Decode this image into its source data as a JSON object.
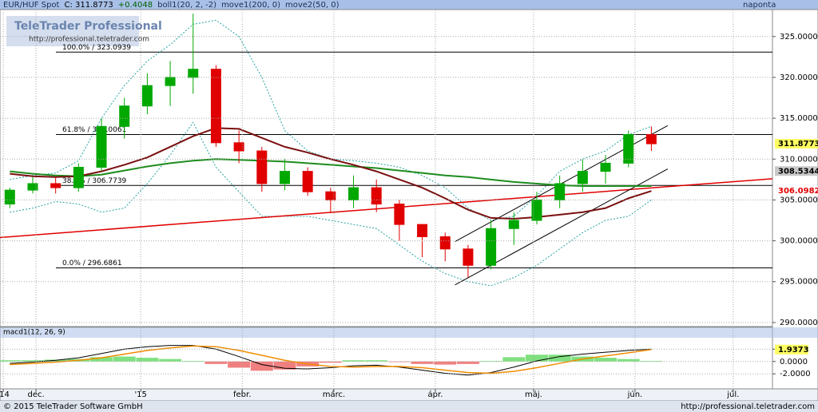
{
  "chart_data": {
    "type": "candlestick",
    "title": "EUR/HUF Spot",
    "last_label": "C: 311.8773",
    "change": "+0.4048",
    "period": "naponta",
    "x": [
      3,
      10,
      17,
      24,
      31,
      38,
      45,
      52,
      59,
      66,
      73,
      80,
      87,
      94,
      101,
      108,
      115,
      122,
      129,
      136,
      143,
      150,
      157,
      164,
      171,
      178,
      185,
      192,
      199
    ],
    "open": [
      304.5,
      306.2,
      307,
      306.5,
      309,
      314,
      316.5,
      319,
      320,
      321,
      312,
      311,
      307,
      308.5,
      306,
      305,
      306.5,
      304.5,
      302,
      300.5,
      299,
      297,
      301.5,
      302.5,
      305,
      307,
      308.5,
      309.5,
      313
    ],
    "high": [
      306.5,
      307.8,
      307.8,
      309.5,
      315,
      317.5,
      320.5,
      322,
      327.8,
      321.5,
      313.5,
      311.5,
      310,
      309,
      306.5,
      308,
      307.5,
      305,
      302,
      301,
      299.5,
      302.5,
      303.5,
      306,
      308,
      310,
      310.5,
      313.5,
      314
    ],
    "low": [
      304,
      305.8,
      305.8,
      306,
      308.5,
      312.5,
      315.5,
      316.5,
      318,
      311.5,
      309.5,
      306,
      306.2,
      305.5,
      303.5,
      304,
      303.5,
      300,
      298,
      297.5,
      295.5,
      296.5,
      299.5,
      302,
      304,
      306,
      307,
      309,
      311
    ],
    "close": [
      306.2,
      307,
      306.5,
      309,
      314,
      316.5,
      319,
      320,
      321,
      312,
      311,
      307,
      308.5,
      306,
      305,
      306.5,
      304.5,
      302,
      300.5,
      299,
      297,
      301.5,
      302.5,
      305,
      307,
      308.5,
      309.5,
      313,
      311.8773
    ],
    "up_color": "#00a800",
    "down_color": "#e00000",
    "bands": {
      "name": "boll1(20, 2, -2)",
      "color": "#2aa3a3",
      "upper": [
        307.5,
        308,
        308.3,
        309.8,
        315,
        319,
        322,
        324,
        326.5,
        327,
        325,
        320,
        313.5,
        311,
        310,
        309.8,
        309.5,
        309,
        308,
        306.5,
        304,
        302.5,
        303,
        305.5,
        308.5,
        310,
        311,
        313,
        314
      ],
      "lower": [
        303.5,
        304,
        304.8,
        304.5,
        303.5,
        304,
        307,
        310.5,
        314.5,
        309,
        306,
        303,
        303,
        303,
        302.5,
        302,
        301.5,
        299.5,
        297.5,
        296,
        295,
        294.5,
        295.5,
        297,
        299,
        301,
        302.5,
        303,
        305
      ]
    },
    "series": [
      {
        "name": "move1(200, 0)",
        "color": "#1e8c1e",
        "values": [
          308.5,
          308.2,
          308,
          307.9,
          308.1,
          308.6,
          309.1,
          309.5,
          309.8,
          310,
          309.9,
          309.8,
          309.7,
          309.5,
          309.3,
          309.1,
          308.9,
          308.6,
          308.3,
          308,
          307.8,
          307.5,
          307.2,
          307,
          306.8,
          306.7,
          306.7,
          306.7,
          306.7
        ]
      },
      {
        "name": "move2(50, 0)",
        "color": "#7a1010",
        "values": [
          308.2,
          307.9,
          307.8,
          307.9,
          308.5,
          309.3,
          310.2,
          311.5,
          312.8,
          313.8,
          313.7,
          312.6,
          311.5,
          310.8,
          310,
          309.3,
          308.5,
          307.5,
          306.5,
          305.2,
          303.8,
          302.8,
          302.7,
          302.9,
          303.2,
          303.5,
          304,
          305.2,
          306.0982
        ]
      }
    ],
    "fib_levels": [
      {
        "value": 323.0939,
        "label": "100.0% / 323.0939"
      },
      {
        "value": 313.0061,
        "label": "61.8% / 313.0061"
      },
      {
        "value": 306.7739,
        "label": "38.2% / 306.7739"
      },
      {
        "value": 296.6861,
        "label": "0.0% / 296.6861"
      }
    ],
    "trendlines": [
      {
        "x": [
          0,
          236
        ],
        "values": [
          300.4,
          307.6
        ],
        "color": "#e00000"
      },
      {
        "x": [
          139,
          204
        ],
        "values": [
          294.6,
          308.8
        ],
        "color": "#000000"
      },
      {
        "x": [
          139,
          204
        ],
        "values": [
          299.9,
          314.1
        ],
        "color": "#000000"
      }
    ],
    "price_labels": [
      308.5344
    ],
    "xlim": [
      0,
      236
    ],
    "xticks": [
      {
        "value": 1,
        "label": "'14"
      },
      {
        "value": 11,
        "label": "dec."
      },
      {
        "value": 43,
        "label": "'15"
      },
      {
        "value": 74,
        "label": "febr."
      },
      {
        "value": 102,
        "label": "márc."
      },
      {
        "value": 133,
        "label": "ápr."
      },
      {
        "value": 163,
        "label": "máj."
      },
      {
        "value": 194,
        "label": "jún."
      },
      {
        "value": 224,
        "label": "júl."
      }
    ],
    "ylim": [
      289.6,
      328.3
    ],
    "yticks": [
      {
        "value": 290,
        "label": "290.0000"
      },
      {
        "value": 295,
        "label": "295.0000"
      },
      {
        "value": 300,
        "label": "300.0000"
      },
      {
        "value": 305,
        "label": "305.0000"
      },
      {
        "value": 310,
        "label": "310.0000"
      },
      {
        "value": 315,
        "label": "315.0000"
      },
      {
        "value": 320,
        "label": "320.0000"
      },
      {
        "value": 325,
        "label": "325.0000"
      }
    ],
    "grid": true,
    "macd": {
      "title": "macd1(12, 26, 9)",
      "macd": {
        "color": "#000000",
        "values": [
          -0.3,
          -0.1,
          0.2,
          0.6,
          1.3,
          2.0,
          2.4,
          2.6,
          2.6,
          2.0,
          0.8,
          -0.5,
          -1.1,
          -1.2,
          -1.0,
          -0.7,
          -0.6,
          -0.9,
          -1.4,
          -1.9,
          -2.2,
          -1.8,
          -0.9,
          0.1,
          0.8,
          1.2,
          1.5,
          1.8,
          2.0
        ]
      },
      "signal": {
        "color": "#f08c00",
        "values": [
          -0.5,
          -0.3,
          -0.1,
          0.2,
          0.6,
          1.2,
          1.8,
          2.2,
          2.5,
          2.4,
          1.8,
          1.0,
          0.2,
          -0.4,
          -0.8,
          -0.9,
          -0.8,
          -0.8,
          -1.0,
          -1.4,
          -1.8,
          -1.9,
          -1.6,
          -1.0,
          -0.3,
          0.4,
          0.9,
          1.4,
          1.9373
        ]
      },
      "histogram": {
        "up_color": "#7fe07f",
        "down_color": "#f08080",
        "values": [
          0.2,
          0.2,
          0.3,
          0.4,
          0.7,
          0.8,
          0.6,
          0.4,
          0.1,
          -0.4,
          -1.0,
          -1.5,
          -1.3,
          -0.8,
          -0.2,
          0.2,
          0.2,
          -0.1,
          -0.4,
          -0.5,
          -0.4,
          0.1,
          0.7,
          1.1,
          1.1,
          0.8,
          0.6,
          0.4,
          0.1
        ]
      },
      "ylim": [
        -4.3,
        5.4
      ],
      "yticks": [
        {
          "value": -2,
          "label": "-2.0000"
        },
        {
          "value": 0,
          "label": "0.0000"
        },
        {
          "value": 2,
          "label": "2.0000"
        }
      ]
    }
  },
  "branding": {
    "logo": "TeleTrader Professional",
    "url": "http://professional.teletrader.com",
    "copyright": "© 2015 TeleTrader Software GmbH",
    "footer_url": "http://professional.teletrader.com"
  }
}
